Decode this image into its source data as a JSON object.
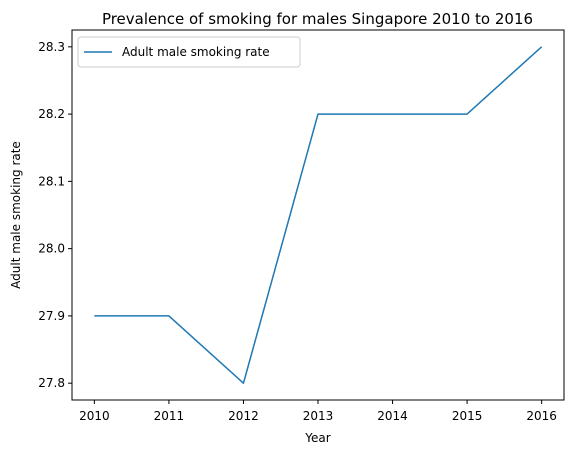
{
  "chart_data": {
    "type": "line",
    "title": "Prevalence of smoking for males Singapore 2010 to 2016",
    "xlabel": "Year",
    "ylabel": "Adult male smoking rate",
    "x": [
      2010,
      2011,
      2012,
      2013,
      2014,
      2015,
      2016
    ],
    "series": [
      {
        "name": "Adult male smoking rate",
        "values": [
          27.9,
          27.9,
          27.8,
          28.2,
          28.2,
          28.2,
          28.3
        ],
        "color": "#1f77b4"
      }
    ],
    "xlim": [
      2009.7,
      2016.3
    ],
    "ylim": [
      27.775,
      28.325
    ],
    "x_ticks": [
      "2010",
      "2011",
      "2012",
      "2013",
      "2014",
      "2015",
      "2016"
    ],
    "y_ticks": [
      "27.8",
      "27.9",
      "28.0",
      "28.1",
      "28.2",
      "28.3"
    ],
    "grid": false,
    "legend_position": "upper left"
  }
}
